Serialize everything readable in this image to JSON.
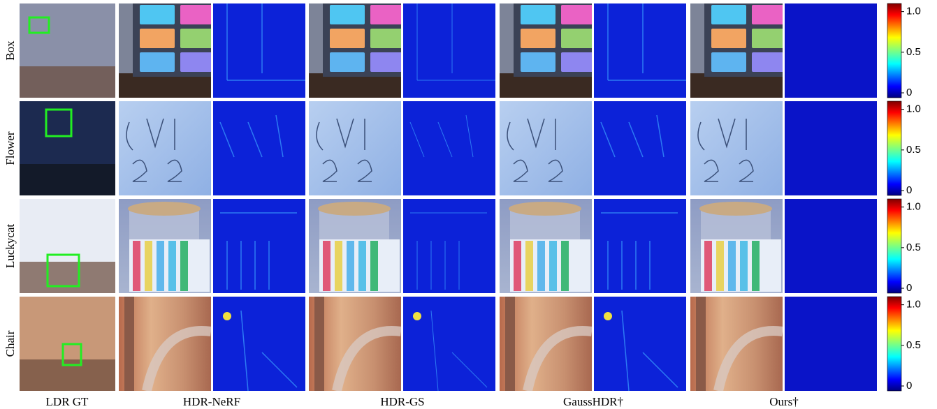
{
  "row_labels": [
    "Box",
    "Flower",
    "Luckycat",
    "Chair"
  ],
  "column_labels": [
    "LDR GT",
    "HDR-NeRF",
    "HDR-GS",
    "GaussHDR†",
    "Ours†"
  ],
  "colorbar": {
    "range": [
      -0.06,
      1.1
    ],
    "ticks": [
      0,
      0.5,
      {
        "value": 1,
        "label": "1.0"
      }
    ]
  }
}
